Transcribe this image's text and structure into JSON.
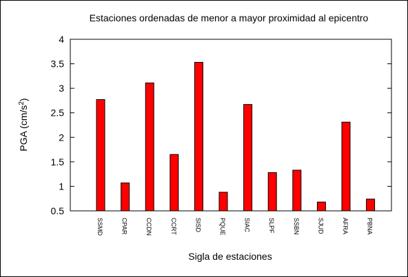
{
  "chart_data": {
    "type": "bar",
    "title": "Estaciones ordenadas de menor a mayor proximidad al epicentro",
    "xlabel": "Sigla de estaciones",
    "ylabel": {
      "prefix": "PGA (cm/s",
      "superscript": "2",
      "suffix": ")"
    },
    "ylim": [
      0.5,
      4
    ],
    "yticks": [
      "0.5",
      "1",
      "1.5",
      "2",
      "2.5",
      "3",
      "3.5",
      "4"
    ],
    "categories": [
      "SSMD",
      "CPAR",
      "CCDN",
      "CCRT",
      "SISD",
      "PQUE",
      "SIAC",
      "SLPF",
      "SSBN",
      "SJUD",
      "AFRA",
      "PBNA"
    ],
    "values": [
      2.77,
      1.07,
      3.11,
      1.65,
      3.53,
      0.88,
      2.67,
      1.28,
      1.33,
      0.68,
      2.31,
      0.74
    ],
    "grid": false,
    "legend": "none",
    "bar_color": "#ff0000",
    "bar_edge_color": "#000000"
  }
}
